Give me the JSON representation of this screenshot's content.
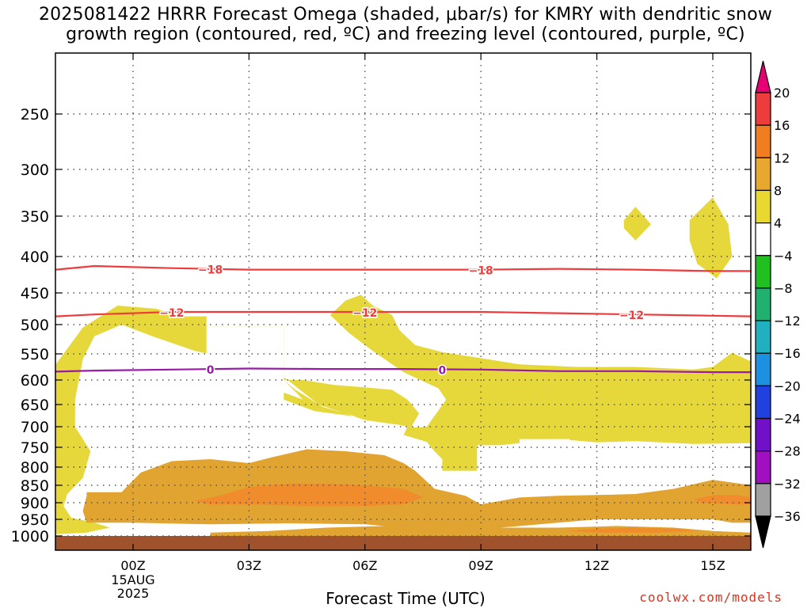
{
  "title_line1": "2025081422 HRRR Forecast Omega (shaded, μbar/s) for KMRY with dendritic snow",
  "title_line2": "growth region (contoured, red, ºC) and freezing level (contoured, purple, ºC)",
  "credit": "coolwx.com/models",
  "chart_data": {
    "type": "area",
    "title": "2025081422 HRRR Forecast Omega (shaded, μbar/s) for KMRY with dendritic snow growth region (contoured, red, ºC) and freezing level (contoured, purple, ºC)",
    "xlabel": "Forecast Time (UTC)",
    "ylabel": "",
    "x_start_hour": -2.0,
    "x_end_hour": 16.0,
    "x_ticks": [
      {
        "hour": 0,
        "label": "00Z",
        "sub": [
          "15AUG",
          "2025"
        ]
      },
      {
        "hour": 3,
        "label": "03Z"
      },
      {
        "hour": 6,
        "label": "06Z"
      },
      {
        "hour": 9,
        "label": "09Z"
      },
      {
        "hour": 12,
        "label": "12Z"
      },
      {
        "hour": 15,
        "label": "15Z"
      }
    ],
    "y_ticks": [
      250,
      300,
      350,
      400,
      450,
      500,
      550,
      600,
      650,
      700,
      750,
      800,
      850,
      900,
      950,
      1000
    ],
    "grid": true,
    "colorbar": {
      "labels": [
        "20",
        "16",
        "12",
        "8",
        "4",
        "−4",
        "−8",
        "−12",
        "−16",
        "−20",
        "−24",
        "−28",
        "−32",
        "−36"
      ],
      "colors_top_to_bottom": [
        "#e60073",
        "#ee3b3b",
        "#f07d20",
        "#e8a830",
        "#e8d830",
        "#ffffff",
        "#20c020",
        "#20b070",
        "#20b0c0",
        "#1e90e0",
        "#2040e0",
        "#7010c8",
        "#a010c0",
        "#a0a0a0",
        "#000000"
      ]
    },
    "ground_level_hpa": 1000,
    "ground_color": "#a0522d",
    "omega_regions": [
      {
        "level": "4-8",
        "color": "#e6d83a",
        "polygon": [
          [
            -2,
            570
          ],
          [
            -1.3,
            505
          ],
          [
            -0.4,
            470
          ],
          [
            0.6,
            475
          ],
          [
            1.2,
            487
          ],
          [
            1.9,
            487
          ],
          [
            1.9,
            503
          ],
          [
            3.4,
            503
          ],
          [
            3.9,
            503
          ],
          [
            3.9,
            640
          ],
          [
            4.7,
            665
          ],
          [
            6,
            680
          ],
          [
            7.1,
            700
          ],
          [
            7,
            720
          ],
          [
            7.6,
            737
          ],
          [
            7.8,
            760
          ],
          [
            8,
            780
          ],
          [
            8,
            810
          ],
          [
            8.9,
            810
          ],
          [
            8.9,
            745
          ],
          [
            9.5,
            745
          ],
          [
            11,
            730
          ],
          [
            12,
            738
          ],
          [
            13,
            735
          ],
          [
            14.5,
            742
          ],
          [
            16,
            740
          ],
          [
            16,
            565
          ],
          [
            15.5,
            548
          ],
          [
            15,
            575
          ],
          [
            14.5,
            580
          ],
          [
            13,
            575
          ],
          [
            11.5,
            575
          ],
          [
            10,
            570
          ],
          [
            8,
            547
          ],
          [
            7.3,
            535
          ],
          [
            6.9,
            510
          ],
          [
            6.7,
            485
          ],
          [
            6.2,
            470
          ],
          [
            5.9,
            453
          ],
          [
            5.5,
            462
          ],
          [
            5.1,
            485
          ],
          [
            5.6,
            515
          ],
          [
            6.2,
            545
          ],
          [
            7.0,
            585
          ],
          [
            7.9,
            617
          ],
          [
            8.1,
            640
          ],
          [
            7.6,
            700
          ],
          [
            7.3,
            702
          ],
          [
            6.0,
            683
          ],
          [
            4.9,
            655
          ],
          [
            4.2,
            620
          ],
          [
            3.9,
            600
          ],
          [
            4.4,
            600
          ],
          [
            5.2,
            610
          ],
          [
            6.0,
            615
          ],
          [
            6.7,
            620
          ],
          [
            7.1,
            640
          ],
          [
            7.4,
            670
          ],
          [
            7.2,
            700
          ],
          [
            6.0,
            685
          ],
          [
            4.8,
            650
          ],
          [
            4.0,
            600
          ],
          [
            3.6,
            580
          ],
          [
            2.6,
            560
          ],
          [
            1.6,
            545
          ],
          [
            0.5,
            520
          ],
          [
            -0.3,
            500
          ],
          [
            -1.0,
            520
          ],
          [
            -1.3,
            560
          ],
          [
            -1.5,
            640
          ],
          [
            -1.5,
            700
          ],
          [
            -1.1,
            760
          ],
          [
            -1.3,
            830
          ],
          [
            -1.7,
            875
          ],
          [
            -1.8,
            910
          ],
          [
            -1.6,
            945
          ],
          [
            -1.0,
            960
          ],
          [
            -0.6,
            975
          ],
          [
            -1.2,
            990
          ],
          [
            -2,
            995
          ]
        ]
      },
      {
        "level": "4-8 (upper cell)",
        "color": "#e6d83a",
        "polygon": [
          [
            12.7,
            355
          ],
          [
            13.0,
            340
          ],
          [
            13.4,
            360
          ],
          [
            13.0,
            380
          ],
          [
            12.7,
            365
          ]
        ]
      },
      {
        "level": "4-8 (upper cell)",
        "color": "#e6d83a",
        "polygon": [
          [
            14.4,
            355
          ],
          [
            15.0,
            330
          ],
          [
            15.4,
            360
          ],
          [
            15.5,
            400
          ],
          [
            15.1,
            430
          ],
          [
            14.6,
            410
          ],
          [
            14.4,
            380
          ]
        ]
      },
      {
        "level": "8-12",
        "color": "#e2a431",
        "polygon": [
          [
            -1.2,
            870
          ],
          [
            -0.3,
            870
          ],
          [
            0.2,
            815
          ],
          [
            1.0,
            785
          ],
          [
            2.0,
            780
          ],
          [
            3.0,
            790
          ],
          [
            3.6,
            775
          ],
          [
            4.5,
            755
          ],
          [
            5.5,
            760
          ],
          [
            6.5,
            770
          ],
          [
            7.0,
            790
          ],
          [
            7.3,
            810
          ],
          [
            7.8,
            860
          ],
          [
            8.6,
            880
          ],
          [
            9.0,
            905
          ],
          [
            10.0,
            885
          ],
          [
            11.0,
            880
          ],
          [
            12.0,
            878
          ],
          [
            13.0,
            875
          ],
          [
            14.0,
            860
          ],
          [
            15.0,
            835
          ],
          [
            16.0,
            850
          ],
          [
            16.0,
            960
          ],
          [
            15.5,
            960
          ],
          [
            15.0,
            950
          ],
          [
            14.0,
            950
          ],
          [
            13.0,
            950
          ],
          [
            12.0,
            950
          ],
          [
            11.0,
            960
          ],
          [
            9.5,
            975
          ],
          [
            7.0,
            975
          ],
          [
            6.0,
            965
          ],
          [
            4.0,
            962
          ],
          [
            2.0,
            965
          ],
          [
            0.0,
            960
          ],
          [
            -1.2,
            960
          ],
          [
            -1.3,
            925
          ],
          [
            -1.2,
            880
          ]
        ]
      },
      {
        "level": "8-12 (low)",
        "color": "#e2a431",
        "polygon": [
          [
            2.0,
            990
          ],
          [
            3.5,
            985
          ],
          [
            5.0,
            975
          ],
          [
            6.5,
            970
          ],
          [
            7.5,
            970
          ],
          [
            8.5,
            975
          ],
          [
            10.0,
            975
          ],
          [
            11.0,
            975
          ],
          [
            12.5,
            970
          ],
          [
            14.0,
            975
          ],
          [
            15.0,
            985
          ],
          [
            16.0,
            990
          ],
          [
            16.0,
            1000
          ],
          [
            2.0,
            1000
          ]
        ]
      },
      {
        "level": "12-16",
        "color": "#f08c2c",
        "polygon": [
          [
            1.6,
            895
          ],
          [
            2.4,
            875
          ],
          [
            3.0,
            855
          ],
          [
            4.0,
            845
          ],
          [
            5.0,
            845
          ],
          [
            6.0,
            850
          ],
          [
            7.0,
            860
          ],
          [
            7.5,
            885
          ],
          [
            7.0,
            905
          ],
          [
            6.0,
            910
          ],
          [
            4.5,
            910
          ],
          [
            3.0,
            905
          ],
          [
            2.0,
            905
          ]
        ]
      },
      {
        "level": "12-16",
        "color": "#f08c2c",
        "polygon": [
          [
            14.5,
            890
          ],
          [
            15.0,
            878
          ],
          [
            15.6,
            878
          ],
          [
            16.0,
            885
          ],
          [
            16.0,
            905
          ],
          [
            15.5,
            905
          ],
          [
            14.7,
            900
          ]
        ]
      },
      {
        "level": "12-16",
        "color": "#f08c2c",
        "polygon": [
          [
            11.2,
            985
          ],
          [
            12.0,
            978
          ],
          [
            13.0,
            975
          ],
          [
            14.0,
            978
          ],
          [
            14.6,
            985
          ],
          [
            13.5,
            990
          ],
          [
            12.0,
            990
          ]
        ]
      }
    ],
    "contours": [
      {
        "value": "−18",
        "color": "#ef3b3b",
        "points": [
          [
            -2,
            418
          ],
          [
            -1,
            413
          ],
          [
            1,
            416
          ],
          [
            3,
            418
          ],
          [
            5,
            418
          ],
          [
            7,
            418
          ],
          [
            9,
            418
          ],
          [
            11,
            417
          ],
          [
            13,
            418
          ],
          [
            15,
            420
          ],
          [
            16,
            420
          ]
        ],
        "labels_at_hours": [
          2.0,
          9.0
        ]
      },
      {
        "value": "−12",
        "color": "#ef3b3b",
        "points": [
          [
            -2,
            487
          ],
          [
            -1,
            484
          ],
          [
            1,
            480
          ],
          [
            3,
            480
          ],
          [
            5,
            480
          ],
          [
            7,
            480
          ],
          [
            9,
            480
          ],
          [
            11,
            482
          ],
          [
            13,
            484
          ],
          [
            15,
            486
          ],
          [
            16,
            487
          ]
        ],
        "labels_at_hours": [
          1.0,
          6.0,
          12.9
        ]
      },
      {
        "value": "0",
        "color": "#9a1aa8",
        "points": [
          [
            -2,
            584
          ],
          [
            -1,
            582
          ],
          [
            1,
            580
          ],
          [
            3,
            578
          ],
          [
            5,
            579
          ],
          [
            7,
            579
          ],
          [
            9,
            580
          ],
          [
            11,
            583
          ],
          [
            13,
            583
          ],
          [
            15,
            585
          ],
          [
            16,
            585
          ]
        ],
        "labels_at_hours": [
          2.0,
          8.0
        ]
      }
    ]
  }
}
